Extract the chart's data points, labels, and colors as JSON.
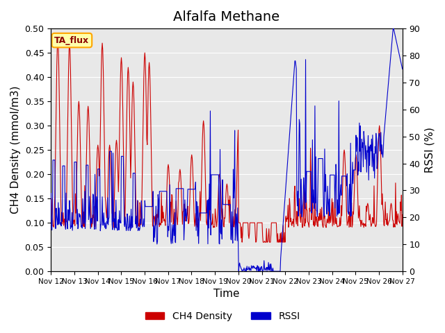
{
  "title": "Alfalfa Methane",
  "ylabel_left": "CH4 Density (mmol/m3)",
  "ylabel_right": "RSSI (%)",
  "xlabel": "Time",
  "ylim_left": [
    0.0,
    0.5
  ],
  "ylim_right": [
    0,
    90
  ],
  "yticks_left": [
    0.0,
    0.05,
    0.1,
    0.15,
    0.2,
    0.25,
    0.3,
    0.35,
    0.4,
    0.45,
    0.5
  ],
  "yticks_right": [
    0,
    10,
    20,
    30,
    40,
    50,
    60,
    70,
    80,
    90
  ],
  "xtick_labels": [
    "Nov 12",
    "Nov 13",
    "Nov 14",
    "Nov 15",
    "Nov 16",
    "Nov 17",
    "Nov 18",
    "Nov 19",
    "Nov 20",
    "Nov 21",
    "Nov 22",
    "Nov 23",
    "Nov 24",
    "Nov 25",
    "Nov 26",
    "Nov 27"
  ],
  "label_box": "TA_flux",
  "legend_ch4": "CH4 Density",
  "legend_rssi": "RSSI",
  "color_ch4": "#CC0000",
  "color_rssi": "#0000CC",
  "background_color": "#E8E8E8",
  "title_fontsize": 14,
  "axis_fontsize": 11,
  "tick_fontsize": 9
}
